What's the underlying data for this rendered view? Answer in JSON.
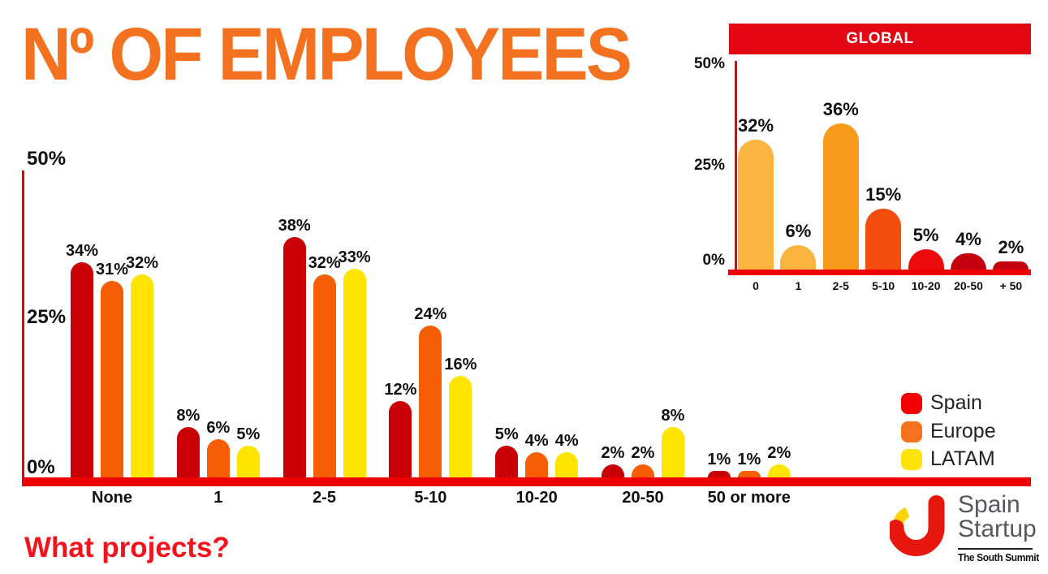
{
  "title": "Nº OF EMPLOYEES",
  "footer": {
    "question": "What projects?"
  },
  "colors": {
    "title_orange": "#F4711F",
    "axis_red": "#EE0000",
    "banner_red": "#E30613",
    "question_red": "#F5121D",
    "label_black": "#101010",
    "logo_text_gray": "#57585C",
    "logo_red": "#E8170D",
    "logo_yellow": "#FFD400"
  },
  "legend": {
    "items": [
      {
        "label": "Spain",
        "color": "#F30000"
      },
      {
        "label": "Europe",
        "color": "#F4731C"
      },
      {
        "label": "LATAM",
        "color": "#FFE40B"
      }
    ]
  },
  "logo": {
    "line1": "Spain",
    "line2": "Startup",
    "tagline": "The South Summit"
  },
  "chart_data": [
    {
      "id": "main",
      "type": "bar",
      "title": "",
      "categories": [
        "None",
        "1",
        "2-5",
        "5-10",
        "10-20",
        "20-50",
        "50 or more"
      ],
      "series": [
        {
          "name": "Spain",
          "color": "#C90005",
          "values": [
            34,
            8,
            38,
            12,
            5,
            2,
            1
          ]
        },
        {
          "name": "Europe",
          "color": "#F75D03",
          "values": [
            31,
            6,
            32,
            24,
            4,
            2,
            1
          ]
        },
        {
          "name": "LATAM",
          "color": "#FFE400",
          "values": [
            32,
            5,
            33,
            16,
            4,
            8,
            2
          ]
        }
      ],
      "xlabel": "",
      "ylabel": "",
      "ylim": [
        0,
        50
      ],
      "ytick_values": [
        0,
        25,
        50
      ],
      "value_suffix": "%",
      "grid": false,
      "legend_position": "right",
      "bar_labels": true
    },
    {
      "id": "global",
      "type": "bar",
      "title": "GLOBAL",
      "categories": [
        "0",
        "1",
        "2-5",
        "5-10",
        "10-20",
        "20-50",
        "+ 50"
      ],
      "values": [
        32,
        6,
        36,
        15,
        5,
        4,
        2
      ],
      "bar_colors": [
        "#FBB43D",
        "#FBB43D",
        "#F89B1B",
        "#F44D0E",
        "#ED0C0C",
        "#C4000F",
        "#C4000F"
      ],
      "xlabel": "",
      "ylabel": "",
      "ylim": [
        0,
        50
      ],
      "ytick_values": [
        0,
        25,
        50
      ],
      "value_suffix": "%",
      "grid": false,
      "bar_labels": true
    }
  ]
}
